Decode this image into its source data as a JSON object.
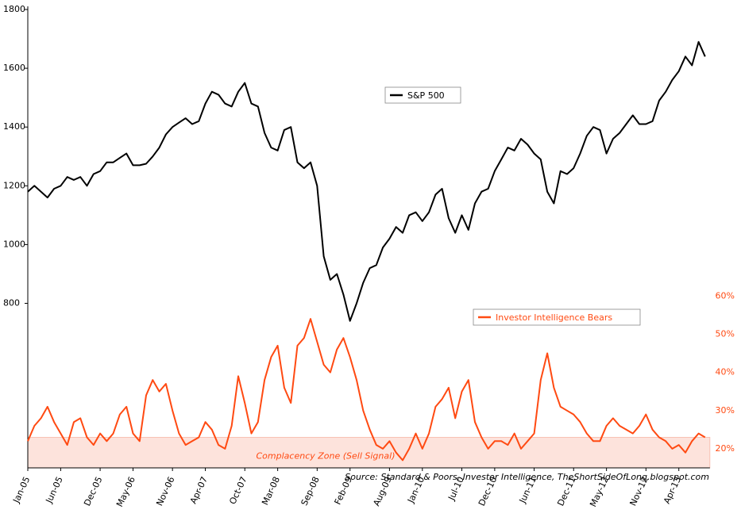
{
  "chart_data": {
    "type": "line",
    "source": "Source: Standard & Poors, Investor Intelligence, TheShortSideOfLong.blogspot.com",
    "categories": [
      "Jan-05",
      null,
      null,
      null,
      null,
      "Jun-05",
      null,
      null,
      null,
      null,
      null,
      "Dec-05",
      null,
      null,
      null,
      null,
      "May-06",
      null,
      null,
      null,
      null,
      null,
      "Nov-06",
      null,
      null,
      null,
      null,
      "Apr-07",
      null,
      null,
      null,
      null,
      null,
      "Oct-07",
      null,
      null,
      null,
      null,
      "Mar-08",
      null,
      null,
      null,
      null,
      null,
      "Sep-08",
      null,
      null,
      null,
      null,
      "Feb-09",
      null,
      null,
      null,
      null,
      null,
      "Aug-09",
      null,
      null,
      null,
      null,
      "Jan-10",
      null,
      null,
      null,
      null,
      null,
      "Jul-10",
      null,
      null,
      null,
      null,
      "Dec-10",
      null,
      null,
      null,
      null,
      null,
      "Jun-11",
      null,
      null,
      null,
      null,
      null,
      "Dec-11",
      null,
      null,
      null,
      null,
      "May-12",
      null,
      null,
      null,
      null,
      null,
      "Nov-12",
      null,
      null,
      null,
      null,
      "Apr-13",
      null,
      null,
      null,
      null
    ],
    "series": [
      {
        "name": "S&P 500",
        "color": "#000000",
        "axis": "y",
        "values": [
          1180,
          1200,
          1180,
          1160,
          1190,
          1200,
          1230,
          1220,
          1230,
          1200,
          1240,
          1250,
          1280,
          1280,
          1295,
          1310,
          1270,
          1270,
          1275,
          1300,
          1330,
          1375,
          1400,
          1415,
          1430,
          1410,
          1420,
          1480,
          1520,
          1510,
          1480,
          1470,
          1520,
          1550,
          1480,
          1470,
          1380,
          1330,
          1320,
          1390,
          1400,
          1280,
          1260,
          1280,
          1200,
          960,
          880,
          900,
          830,
          740,
          800,
          870,
          920,
          930,
          990,
          1020,
          1060,
          1040,
          1100,
          1110,
          1080,
          1110,
          1170,
          1190,
          1090,
          1040,
          1100,
          1050,
          1140,
          1180,
          1190,
          1250,
          1290,
          1330,
          1320,
          1360,
          1340,
          1310,
          1290,
          1180,
          1140,
          1250,
          1240,
          1260,
          1310,
          1370,
          1400,
          1390,
          1310,
          1360,
          1380,
          1410,
          1440,
          1410,
          1410,
          1420,
          1490,
          1520,
          1560,
          1590,
          1640,
          1610,
          1690,
          1640
        ]
      },
      {
        "name": "Investor Intelligence Bears",
        "color": "#ff4a12",
        "axis": "y2",
        "values": [
          22,
          26,
          28,
          31,
          27,
          24,
          21,
          27,
          28,
          23,
          21,
          24,
          22,
          24,
          29,
          31,
          24,
          22,
          34,
          38,
          35,
          37,
          30,
          24,
          21,
          22,
          23,
          27,
          25,
          21,
          20,
          26,
          39,
          32,
          24,
          27,
          38,
          44,
          47,
          36,
          32,
          47,
          49,
          54,
          48,
          42,
          40,
          46,
          49,
          44,
          38,
          30,
          25,
          21,
          20,
          22,
          19,
          17,
          20,
          24,
          20,
          24,
          31,
          33,
          36,
          28,
          35,
          38,
          27,
          23,
          20,
          22,
          22,
          21,
          24,
          20,
          22,
          24,
          38,
          45,
          36,
          31,
          30,
          29,
          27,
          24,
          22,
          22,
          26,
          28,
          26,
          25,
          24,
          26,
          29,
          25,
          23,
          22,
          20,
          21,
          19,
          22,
          24,
          23
        ]
      }
    ],
    "ylim": [
      240,
      1800
    ],
    "yticks": [
      800,
      1000,
      1200,
      1400,
      1600,
      1800
    ],
    "y2lim": [
      15,
      135
    ],
    "y2ticks": [
      {
        "value": 20,
        "label": "20%"
      },
      {
        "value": 30,
        "label": "30%"
      },
      {
        "value": 40,
        "label": "40%"
      },
      {
        "value": 50,
        "label": "50%"
      },
      {
        "value": 60,
        "label": "60%"
      }
    ],
    "zone": {
      "label": "Complacency Zone (Sell Signal)",
      "range": [
        15,
        23
      ]
    }
  }
}
